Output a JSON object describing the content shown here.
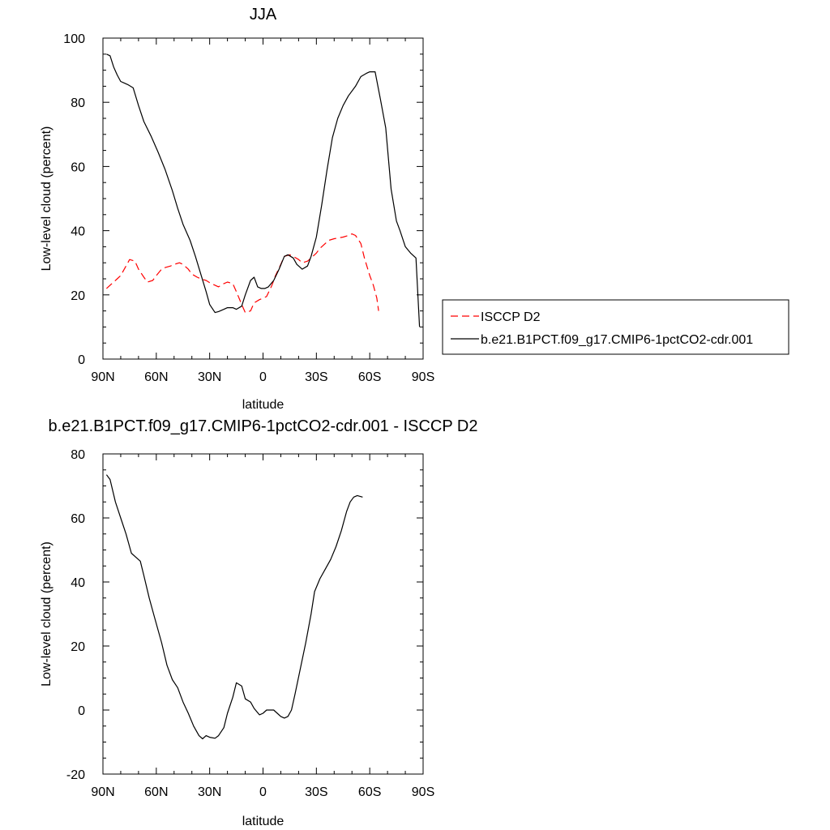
{
  "chart_data": [
    {
      "type": "line",
      "title": "JJA",
      "xlabel": "latitude",
      "ylabel": "Low-level cloud (percent)",
      "xlim": [
        90,
        -90
      ],
      "ylim": [
        0,
        100
      ],
      "xticks": [
        {
          "value": 90,
          "label": "90N"
        },
        {
          "value": 60,
          "label": "60N"
        },
        {
          "value": 30,
          "label": "30N"
        },
        {
          "value": 0,
          "label": "0"
        },
        {
          "value": -30,
          "label": "30S"
        },
        {
          "value": -60,
          "label": "60S"
        },
        {
          "value": -90,
          "label": "90S"
        }
      ],
      "yticks": [
        0,
        20,
        40,
        60,
        80,
        100
      ],
      "grid": false,
      "legend_position": "right",
      "series": [
        {
          "name": "ISCCP D2",
          "color": "#ff0000",
          "dash": "dashed",
          "points": [
            [
              88,
              22
            ],
            [
              85,
              23.5
            ],
            [
              82,
              25
            ],
            [
              80,
              26
            ],
            [
              77,
              29
            ],
            [
              75,
              31
            ],
            [
              72,
              30.5
            ],
            [
              70,
              28
            ],
            [
              67,
              25.5
            ],
            [
              65,
              24
            ],
            [
              62,
              24.5
            ],
            [
              60,
              26
            ],
            [
              57,
              28
            ],
            [
              55,
              28.5
            ],
            [
              52,
              29
            ],
            [
              50,
              29.5
            ],
            [
              47,
              30
            ],
            [
              45,
              29.5
            ],
            [
              42,
              28
            ],
            [
              40,
              26.5
            ],
            [
              37,
              25.5
            ],
            [
              35,
              25
            ],
            [
              32,
              24.5
            ],
            [
              30,
              23.8
            ],
            [
              27,
              23
            ],
            [
              25,
              22.5
            ],
            [
              22,
              23.5
            ],
            [
              20,
              24
            ],
            [
              17,
              23.5
            ],
            [
              15,
              21
            ],
            [
              12,
              17
            ],
            [
              10,
              14.5
            ],
            [
              7,
              15
            ],
            [
              5,
              17.5
            ],
            [
              2,
              18.5
            ],
            [
              0,
              19
            ],
            [
              -2,
              19.5
            ],
            [
              -5,
              23
            ],
            [
              -7,
              26
            ],
            [
              -10,
              29.5
            ],
            [
              -12,
              32
            ],
            [
              -15,
              32.5
            ],
            [
              -17,
              32
            ],
            [
              -20,
              31
            ],
            [
              -22,
              30
            ],
            [
              -25,
              30.5
            ],
            [
              -27,
              31.5
            ],
            [
              -30,
              33
            ],
            [
              -32,
              34.5
            ],
            [
              -35,
              36
            ],
            [
              -37,
              37
            ],
            [
              -40,
              37.5
            ],
            [
              -45,
              38
            ],
            [
              -48,
              38.5
            ],
            [
              -50,
              39
            ],
            [
              -52,
              38.5
            ],
            [
              -55,
              36
            ],
            [
              -57,
              31.5
            ],
            [
              -60,
              26
            ],
            [
              -62,
              23
            ],
            [
              -64,
              19
            ],
            [
              -65,
              15
            ]
          ]
        },
        {
          "name": "b.e21.B1PCT.f09_g17.CMIP6-1pctCO2-cdr.001",
          "color": "#000000",
          "dash": "solid",
          "points": [
            [
              88,
              95
            ],
            [
              86,
              94.5
            ],
            [
              84,
              91
            ],
            [
              82,
              88.5
            ],
            [
              80,
              86.5
            ],
            [
              78,
              86
            ],
            [
              76,
              85.5
            ],
            [
              73,
              84.5
            ],
            [
              70,
              79
            ],
            [
              67,
              74
            ],
            [
              63,
              69.5
            ],
            [
              59,
              64.5
            ],
            [
              55,
              59
            ],
            [
              51,
              52.5
            ],
            [
              48,
              47
            ],
            [
              45,
              42
            ],
            [
              41,
              37
            ],
            [
              38,
              32
            ],
            [
              35,
              26.5
            ],
            [
              32,
              21
            ],
            [
              30,
              17
            ],
            [
              27,
              14.5
            ],
            [
              25,
              14.8
            ],
            [
              22,
              15.5
            ],
            [
              20,
              16
            ],
            [
              17,
              16
            ],
            [
              15,
              15.5
            ],
            [
              12,
              16.5
            ],
            [
              10,
              20
            ],
            [
              7,
              24.5
            ],
            [
              5,
              25.5
            ],
            [
              3,
              22.5
            ],
            [
              1,
              22
            ],
            [
              -1,
              22
            ],
            [
              -3,
              22.5
            ],
            [
              -6,
              24.5
            ],
            [
              -9,
              28
            ],
            [
              -12,
              32
            ],
            [
              -14,
              32.5
            ],
            [
              -17,
              31.5
            ],
            [
              -19,
              29.5
            ],
            [
              -22,
              28
            ],
            [
              -25,
              29
            ],
            [
              -27,
              32
            ],
            [
              -30,
              38
            ],
            [
              -33,
              48
            ],
            [
              -36,
              59
            ],
            [
              -39,
              69
            ],
            [
              -42,
              75
            ],
            [
              -45,
              79
            ],
            [
              -48,
              82
            ],
            [
              -52,
              85
            ],
            [
              -55,
              88
            ],
            [
              -58,
              89
            ],
            [
              -60,
              89.5
            ],
            [
              -63,
              89.5
            ],
            [
              -66,
              81
            ],
            [
              -69,
              72
            ],
            [
              -72,
              53
            ],
            [
              -75,
              43
            ],
            [
              -77,
              40
            ],
            [
              -80,
              35
            ],
            [
              -83,
              33
            ],
            [
              -86,
              31.5
            ],
            [
              -88,
              10
            ]
          ]
        }
      ]
    },
    {
      "type": "line",
      "title": "b.e21.B1PCT.f09_g17.CMIP6-1pctCO2-cdr.001 - ISCCP D2",
      "xlabel": "latitude",
      "ylabel": "Low-level cloud (percent)",
      "xlim": [
        90,
        -90
      ],
      "ylim": [
        -20,
        80
      ],
      "xticks": [
        {
          "value": 90,
          "label": "90N"
        },
        {
          "value": 60,
          "label": "60N"
        },
        {
          "value": 30,
          "label": "30N"
        },
        {
          "value": 0,
          "label": "0"
        },
        {
          "value": -30,
          "label": "30S"
        },
        {
          "value": -60,
          "label": "60S"
        },
        {
          "value": -90,
          "label": "90S"
        }
      ],
      "yticks": [
        -20,
        0,
        20,
        40,
        60,
        80
      ],
      "grid": false,
      "series": [
        {
          "color": "#000000",
          "dash": "solid",
          "points": [
            [
              88,
              73.5
            ],
            [
              86,
              72
            ],
            [
              83,
              65
            ],
            [
              80,
              60
            ],
            [
              77,
              55
            ],
            [
              74,
              49
            ],
            [
              71,
              47.5
            ],
            [
              69,
              46.5
            ],
            [
              67,
              42
            ],
            [
              64,
              35
            ],
            [
              61,
              29
            ],
            [
              57,
              21
            ],
            [
              54,
              14
            ],
            [
              51,
              9.5
            ],
            [
              48,
              7
            ],
            [
              45,
              2.5
            ],
            [
              42,
              -1
            ],
            [
              39,
              -5
            ],
            [
              36,
              -8
            ],
            [
              34,
              -9
            ],
            [
              32,
              -8
            ],
            [
              30,
              -8.5
            ],
            [
              27,
              -8.8
            ],
            [
              25,
              -8
            ],
            [
              22,
              -5.5
            ],
            [
              20,
              -1
            ],
            [
              17,
              4
            ],
            [
              15,
              8.5
            ],
            [
              12,
              7.5
            ],
            [
              10,
              3.5
            ],
            [
              7,
              2.5
            ],
            [
              5,
              0.5
            ],
            [
              2,
              -1.5
            ],
            [
              0,
              -1
            ],
            [
              -2,
              0
            ],
            [
              -4,
              0
            ],
            [
              -6,
              0
            ],
            [
              -8,
              -1
            ],
            [
              -10,
              -2
            ],
            [
              -12,
              -2.5
            ],
            [
              -14,
              -2
            ],
            [
              -16,
              0
            ],
            [
              -18,
              5
            ],
            [
              -21,
              13
            ],
            [
              -24,
              21
            ],
            [
              -27,
              30
            ],
            [
              -29,
              37
            ],
            [
              -32,
              41
            ],
            [
              -35,
              44
            ],
            [
              -38,
              47
            ],
            [
              -41,
              51
            ],
            [
              -44,
              56
            ],
            [
              -47,
              62
            ],
            [
              -49,
              65
            ],
            [
              -51,
              66.5
            ],
            [
              -53,
              67
            ],
            [
              -56,
              66.5
            ]
          ]
        }
      ]
    }
  ]
}
